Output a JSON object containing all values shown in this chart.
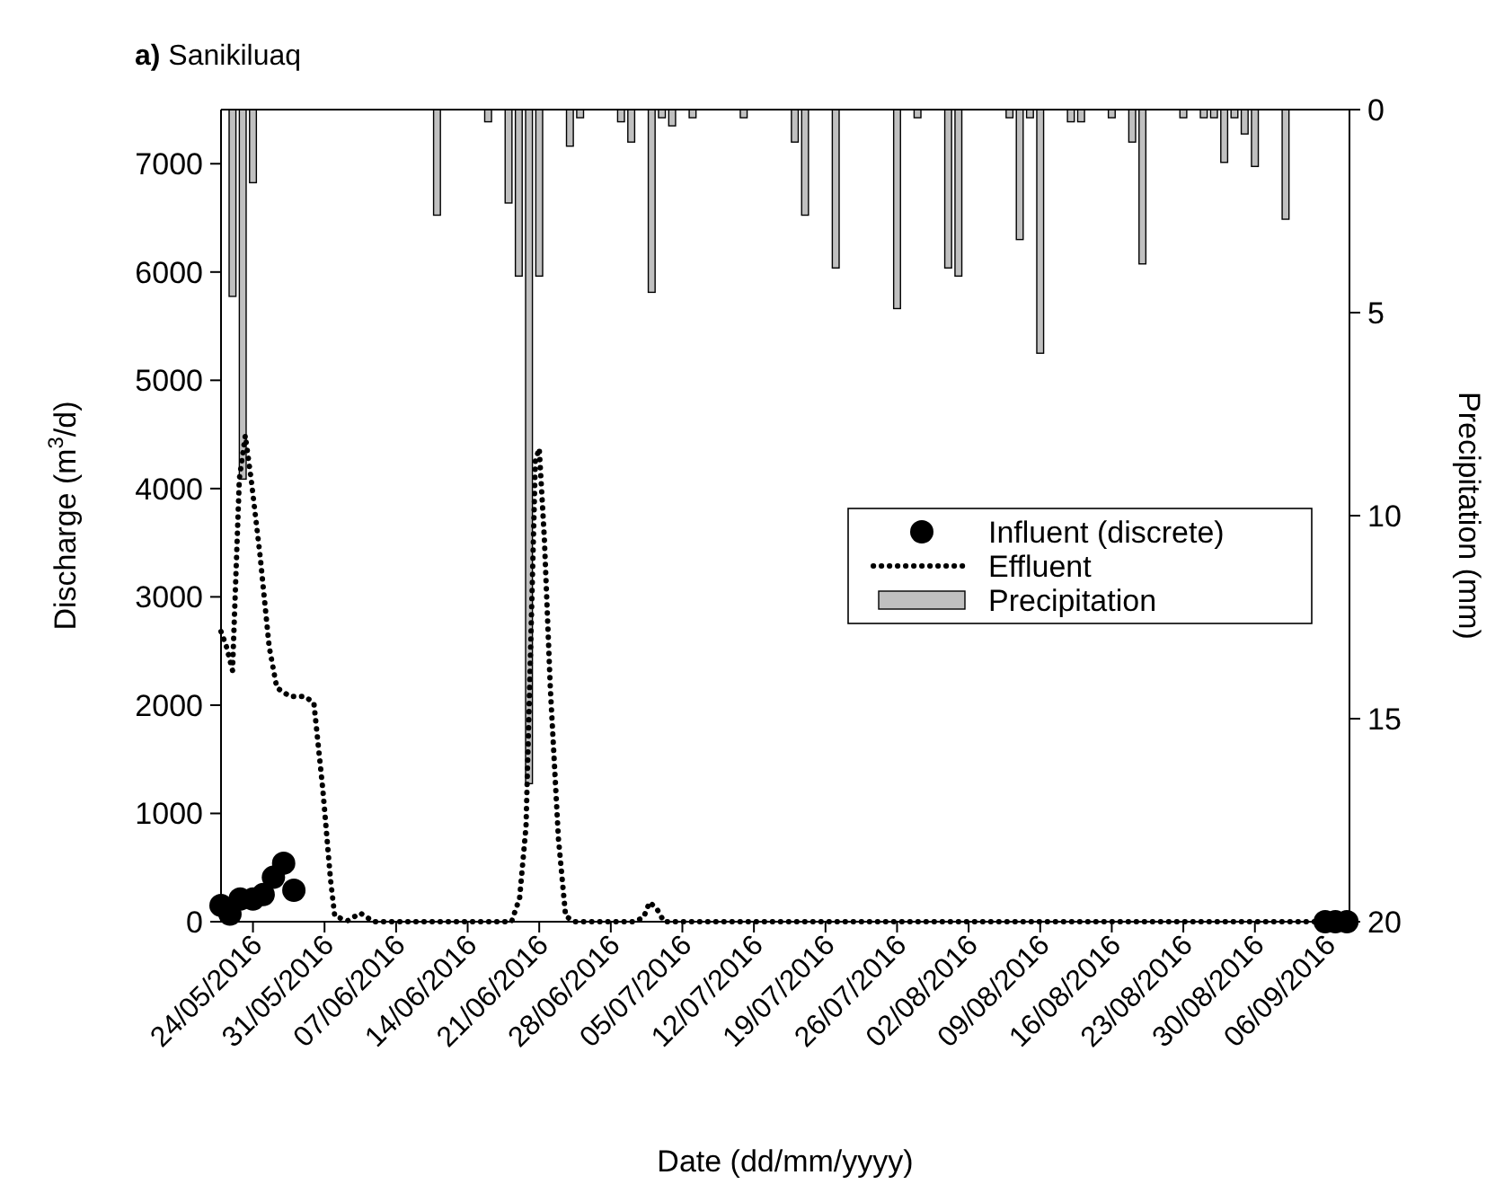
{
  "chart_data": {
    "type": "line",
    "title": "a) Sanikiluaq",
    "xlabel": "Date (dd/mm/yyyy)",
    "ylabel": "Discharge (m$^{3}$/d)",
    "y2label": "Precipitation (mm)",
    "xlim": [
      "2016-05-20T21:00",
      "2016-09-08T06:00"
    ],
    "xticks": [
      {
        "value": "2016-05-24",
        "label": "24/05/2016"
      },
      {
        "value": "2016-05-31",
        "label": "31/05/2016"
      },
      {
        "value": "2016-06-07",
        "label": "07/06/2016"
      },
      {
        "value": "2016-06-14",
        "label": "14/06/2016"
      },
      {
        "value": "2016-06-21",
        "label": "21/06/2016"
      },
      {
        "value": "2016-06-28",
        "label": "28/06/2016"
      },
      {
        "value": "2016-07-05",
        "label": "05/07/2016"
      },
      {
        "value": "2016-07-12",
        "label": "12/07/2016"
      },
      {
        "value": "2016-07-19",
        "label": "19/07/2016"
      },
      {
        "value": "2016-07-26",
        "label": "26/07/2016"
      },
      {
        "value": "2016-08-02",
        "label": "02/08/2016"
      },
      {
        "value": "2016-08-09",
        "label": "09/08/2016"
      },
      {
        "value": "2016-08-16",
        "label": "16/08/2016"
      },
      {
        "value": "2016-08-23",
        "label": "23/08/2016"
      },
      {
        "value": "2016-08-30",
        "label": "30/08/2016"
      },
      {
        "value": "2016-09-06",
        "label": "06/09/2016"
      }
    ],
    "ylim": [
      0,
      7500
    ],
    "yticks": [
      0,
      1000,
      2000,
      3000,
      4000,
      5000,
      6000,
      7000
    ],
    "y2lim": [
      20,
      0
    ],
    "y2ticks": [
      0,
      5,
      10,
      15,
      20
    ],
    "legend": "right",
    "grid": false,
    "series": [
      {
        "name": "Precipitation",
        "type": "bar",
        "axis": "y2",
        "color": "#c0c0c0",
        "x": [
          "2016-05-22",
          "2016-05-23",
          "2016-05-24",
          "2016-06-11",
          "2016-06-16",
          "2016-06-18",
          "2016-06-19",
          "2016-06-20",
          "2016-06-21",
          "2016-06-24",
          "2016-06-25",
          "2016-06-29",
          "2016-06-30",
          "2016-07-02",
          "2016-07-03",
          "2016-07-04",
          "2016-07-06",
          "2016-07-11",
          "2016-07-16",
          "2016-07-17",
          "2016-07-20",
          "2016-07-26",
          "2016-07-28",
          "2016-07-31",
          "2016-08-01",
          "2016-08-06",
          "2016-08-07",
          "2016-08-08",
          "2016-08-09",
          "2016-08-12",
          "2016-08-13",
          "2016-08-16",
          "2016-08-18",
          "2016-08-19",
          "2016-08-23",
          "2016-08-25",
          "2016-08-26",
          "2016-08-27",
          "2016-08-28",
          "2016-08-29",
          "2016-08-30",
          "2016-09-02"
        ],
        "values": [
          4.6,
          9.1,
          1.8,
          2.6,
          0.3,
          2.3,
          4.1,
          16.6,
          4.1,
          0.9,
          0.2,
          0.3,
          0.8,
          4.5,
          0.2,
          0.4,
          0.2,
          0.2,
          0.8,
          2.6,
          3.9,
          4.9,
          0.2,
          3.9,
          4.1,
          0.2,
          3.2,
          0.2,
          6.0,
          0.3,
          0.3,
          0.2,
          0.8,
          3.8,
          0.2,
          0.2,
          0.2,
          1.3,
          0.2,
          0.6,
          1.4,
          2.7
        ]
      },
      {
        "name": "Effluent",
        "color": "#000000",
        "line_style": "dotted",
        "x": [
          "2016-05-20T21:00",
          "2016-05-21T09:00",
          "2016-05-22T00:00",
          "2016-05-22T16:00",
          "2016-05-23T06:00",
          "2016-05-23T20:00",
          "2016-05-24T17:00",
          "2016-05-25T14:00",
          "2016-05-26T08:00",
          "2016-05-27T15:00",
          "2016-05-29T02:00",
          "2016-05-29T23:00",
          "2016-05-30T20:00",
          "2016-05-31T14:00",
          "2016-06-01T00:00",
          "2016-06-02T07:00",
          "2016-06-03T12:00",
          "2016-06-04T19:00",
          "2016-06-18T07:00",
          "2016-06-19T02:00",
          "2016-06-19T17:00",
          "2016-06-20T05:00",
          "2016-06-20T15:00",
          "2016-06-21T00:00",
          "2016-06-21T12:00",
          "2016-06-22T02:00",
          "2016-06-22T21:00",
          "2016-06-23T14:00",
          "2016-06-24T12:00",
          "2016-06-30T07:00",
          "2016-07-01T05:00",
          "2016-07-01T19:00",
          "2016-07-02T12:00",
          "2016-07-03T05:00",
          "2016-09-08T06:00"
        ],
        "values": [
          2680,
          2550,
          2320,
          4090,
          4490,
          4080,
          3370,
          2540,
          2160,
          2080,
          2080,
          2020,
          1220,
          390,
          50,
          10,
          80,
          0,
          0,
          220,
          880,
          2710,
          4260,
          4370,
          3540,
          2160,
          770,
          50,
          0,
          0,
          40,
          180,
          120,
          0,
          0
        ]
      },
      {
        "name": "Influent (discrete)",
        "type": "scatter",
        "color": "#000000",
        "marker": "circle",
        "x": [
          "2016-05-20T21:00",
          "2016-05-21T18:00",
          "2016-05-22T18:00",
          "2016-05-24T00:00",
          "2016-05-25T00:00",
          "2016-05-26T00:00",
          "2016-05-27T00:00",
          "2016-05-28T00:00",
          "2016-09-05T21:00",
          "2016-09-06T21:00",
          "2016-09-08T00:00"
        ],
        "values": [
          150,
          70,
          210,
          210,
          250,
          410,
          540,
          290,
          0,
          0,
          0
        ]
      }
    ]
  }
}
